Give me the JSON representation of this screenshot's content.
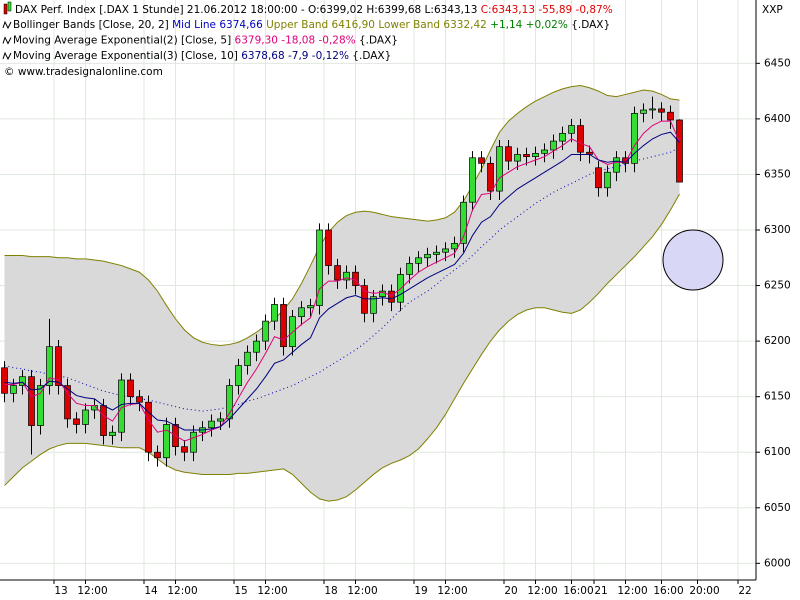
{
  "chart_data": {
    "type": "candlestick",
    "header": "DAX Perf. Index [.DAX  1 Stunde] 21.06.2012 18:00:00 - O:6399,02 H:6399,68 L:6343,13",
    "header_change": "C:6343,13 -55,89 -0,87%",
    "header_change_color": "#e00000",
    "copyright": "© www.tradesignalonline.com",
    "y_axis_title": "XXP",
    "up_color": "#33dd33",
    "down_color": "#dd0000",
    "band_fill": "#d9d9d9",
    "open": [
      6176,
      6153,
      6160,
      6168,
      6124,
      6160,
      6195,
      6160,
      6130,
      6125,
      6138,
      6142,
      6115,
      6118,
      6165,
      6150,
      6145,
      6100,
      6095,
      6125,
      6105,
      6100,
      6118,
      6122,
      6128,
      6130,
      6160,
      6178,
      6190,
      6200,
      6218,
      6233,
      6195,
      6222,
      6230,
      6232,
      6300,
      6268,
      6255,
      6262,
      6250,
      6225,
      6240,
      6245,
      6235,
      6260,
      6270,
      6275,
      6278,
      6280,
      6283,
      6288,
      6325,
      6365,
      6360,
      6335,
      6375,
      6362,
      6368,
      6366,
      6369,
      6372,
      6380,
      6387,
      6394,
      6370,
      6356,
      6338,
      6352,
      6365,
      6360,
      6405,
      6408,
      6409,
      6406,
      6399.02
    ],
    "high": [
      6182,
      6166,
      6174,
      6174,
      6166,
      6220,
      6201,
      6166,
      6136,
      6144,
      6148,
      6148,
      6124,
      6171,
      6171,
      6156,
      6151,
      6106,
      6131,
      6131,
      6111,
      6124,
      6128,
      6134,
      6136,
      6166,
      6184,
      6196,
      6206,
      6224,
      6239,
      6239,
      6228,
      6236,
      6238,
      6306,
      6306,
      6274,
      6268,
      6268,
      6256,
      6246,
      6251,
      6251,
      6266,
      6276,
      6281,
      6284,
      6286,
      6289,
      6294,
      6331,
      6371,
      6371,
      6366,
      6381,
      6381,
      6374,
      6374,
      6375,
      6378,
      6386,
      6393,
      6400,
      6400,
      6376,
      6362,
      6358,
      6371,
      6371,
      6411,
      6414,
      6420,
      6415,
      6412,
      6399.68
    ],
    "low": [
      6145,
      6145,
      6152,
      6098,
      6116,
      6152,
      6152,
      6122,
      6117,
      6117,
      6130,
      6107,
      6107,
      6110,
      6142,
      6137,
      6092,
      6087,
      6087,
      6097,
      6092,
      6092,
      6110,
      6114,
      6120,
      6122,
      6152,
      6170,
      6182,
      6192,
      6210,
      6187,
      6187,
      6214,
      6222,
      6224,
      6260,
      6247,
      6247,
      6242,
      6217,
      6217,
      6232,
      6227,
      6227,
      6252,
      6262,
      6267,
      6270,
      6272,
      6275,
      6280,
      6317,
      6352,
      6327,
      6327,
      6354,
      6354,
      6358,
      6358,
      6361,
      6364,
      6372,
      6379,
      6362,
      6360,
      6330,
      6330,
      6344,
      6352,
      6352,
      6397,
      6400,
      6398,
      6391,
      6343.13
    ],
    "close": [
      6153,
      6160,
      6168,
      6124,
      6160,
      6195,
      6160,
      6130,
      6125,
      6138,
      6142,
      6115,
      6118,
      6165,
      6150,
      6145,
      6100,
      6095,
      6125,
      6105,
      6100,
      6118,
      6122,
      6128,
      6130,
      6160,
      6178,
      6190,
      6200,
      6218,
      6233,
      6195,
      6222,
      6230,
      6232,
      6300,
      6268,
      6255,
      6262,
      6250,
      6225,
      6240,
      6245,
      6235,
      6260,
      6270,
      6275,
      6278,
      6280,
      6283,
      6288,
      6325,
      6365,
      6360,
      6335,
      6375,
      6362,
      6368,
      6366,
      6369,
      6372,
      6380,
      6387,
      6394,
      6370,
      6368,
      6338,
      6352,
      6365,
      6360,
      6405,
      6408,
      6409,
      6406,
      6399,
      6343.13
    ],
    "indicators": [
      {
        "name": "Bollinger Bands [Close, 20, 2]",
        "change": "+1,14 +0,02%",
        "change_color": "#008000",
        "tag": "{.DAX}",
        "series": [
          {
            "name": "Mid Line",
            "label": "6374,66",
            "color": "#0000c0",
            "dotted": true,
            "values": [
              6178,
              6176,
              6175,
              6173,
              6172,
              6170,
              6169,
              6167,
              6164,
              6161,
              6158,
              6155,
              6153,
              6151,
              6150,
              6148,
              6147,
              6145,
              6143,
              6141,
              6139,
              6138,
              6137,
              6138,
              6139,
              6141,
              6143,
              6146,
              6148,
              6151,
              6154,
              6157,
              6160,
              6164,
              6168,
              6172,
              6177,
              6182,
              6187,
              6192,
              6198,
              6205,
              6212,
              6220,
              6228,
              6235,
              6240,
              6245,
              6251,
              6258,
              6264,
              6270,
              6277,
              6285,
              6292,
              6300,
              6306,
              6312,
              6318,
              6324,
              6329,
              6334,
              6338,
              6342,
              6346,
              6350,
              6353,
              6355,
              6357,
              6359,
              6362,
              6364,
              6366,
              6368,
              6370,
              6374.66
            ]
          },
          {
            "name": "Upper Band",
            "label": "6416,90",
            "color": "#808000",
            "dotted": false,
            "values": [
              6277,
              6277,
              6277,
              6276,
              6276,
              6276,
              6275,
              6275,
              6274,
              6274,
              6273,
              6272,
              6270,
              6268,
              6265,
              6262,
              6255,
              6245,
              6232,
              6220,
              6210,
              6203,
              6199,
              6197,
              6196,
              6197,
              6199,
              6203,
              6208,
              6214,
              6220,
              6228,
              6238,
              6252,
              6268,
              6285,
              6298,
              6307,
              6313,
              6316,
              6317,
              6316,
              6314,
              6312,
              6311,
              6310,
              6309,
              6308,
              6309,
              6311,
              6316,
              6326,
              6340,
              6355,
              6372,
              6388,
              6398,
              6405,
              6411,
              6416,
              6420,
              6424,
              6427,
              6429,
              6430,
              6428,
              6425,
              6421,
              6420,
              6422,
              6424,
              6426,
              6425,
              6422,
              6418,
              6416.9
            ]
          },
          {
            "name": "Lower Band",
            "label": "6332,42",
            "color": "#808000",
            "dotted": false,
            "values": [
              6070,
              6078,
              6086,
              6092,
              6098,
              6103,
              6106,
              6108,
              6108,
              6108,
              6107,
              6106,
              6105,
              6104,
              6104,
              6104,
              6100,
              6094,
              6088,
              6084,
              6082,
              6081,
              6080,
              6080,
              6080,
              6080,
              6081,
              6081,
              6082,
              6083,
              6084,
              6085,
              6080,
              6072,
              6064,
              6058,
              6056,
              6057,
              6060,
              6066,
              6073,
              6080,
              6086,
              6090,
              6093,
              6097,
              6103,
              6112,
              6122,
              6134,
              6148,
              6162,
              6175,
              6188,
              6200,
              6210,
              6218,
              6224,
              6228,
              6230,
              6230,
              6228,
              6226,
              6225,
              6228,
              6235,
              6243,
              6252,
              6260,
              6268,
              6276,
              6285,
              6294,
              6305,
              6318,
              6332.42
            ]
          }
        ]
      },
      {
        "name": "Moving Average Exponential(2) [Close, 5]",
        "tag": "{.DAX}",
        "series": [
          {
            "label": "6379,30 -18,08 -0,28%",
            "color": "#e0007a",
            "dotted": false,
            "values": [
              6161,
              6161,
              6163,
              6150,
              6153,
              6167,
              6165,
              6153,
              6144,
              6142,
              6142,
              6133,
              6128,
              6140,
              6143,
              6144,
              6129,
              6118,
              6120,
              6115,
              6110,
              6113,
              6116,
              6120,
              6123,
              6135,
              6149,
              6163,
              6175,
              6189,
              6204,
              6201,
              6208,
              6215,
              6221,
              6247,
              6254,
              6254,
              6257,
              6255,
              6245,
              6243,
              6244,
              6241,
              6247,
              6255,
              6262,
              6267,
              6271,
              6275,
              6279,
              6294,
              6318,
              6332,
              6333,
              6347,
              6352,
              6357,
              6360,
              6363,
              6366,
              6371,
              6376,
              6382,
              6378,
              6375,
              6363,
              6359,
              6361,
              6361,
              6376,
              6387,
              6394,
              6398,
              6398,
              6379.3
            ]
          }
        ]
      },
      {
        "name": "Moving Average Exponential(3) [Close, 10]",
        "tag": "{.DAX}",
        "series": [
          {
            "label": "6378,68 -7,9 -0,12%",
            "color": "#000080",
            "dotted": false,
            "values": [
              6163,
              6162,
              6163,
              6156,
              6157,
              6164,
              6163,
              6157,
              6151,
              6149,
              6148,
              6142,
              6138,
              6143,
              6144,
              6144,
              6136,
              6129,
              6128,
              6124,
              6120,
              6120,
              6120,
              6121,
              6123,
              6130,
              6139,
              6148,
              6157,
              6168,
              6180,
              6183,
              6190,
              6197,
              6203,
              6221,
              6229,
              6234,
              6239,
              6241,
              6238,
              6238,
              6239,
              6238,
              6242,
              6247,
              6252,
              6257,
              6261,
              6265,
              6269,
              6279,
              6295,
              6307,
              6312,
              6323,
              6330,
              6337,
              6342,
              6347,
              6352,
              6357,
              6362,
              6368,
              6368,
              6368,
              6363,
              6361,
              6362,
              6361,
              6369,
              6376,
              6382,
              6386,
              6388,
              6378.68
            ]
          }
        ]
      }
    ],
    "xlim": [
      -0.5,
      83.5
    ],
    "xticks": [
      {
        "value": 5.5,
        "label": "13"
      },
      {
        "value": 9,
        "label": "12:00"
      },
      {
        "value": 15.5,
        "label": "14"
      },
      {
        "value": 19,
        "label": "12:00"
      },
      {
        "value": 25.5,
        "label": "15"
      },
      {
        "value": 29,
        "label": "12:00"
      },
      {
        "value": 35.5,
        "label": "18"
      },
      {
        "value": 39,
        "label": "12:00"
      },
      {
        "value": 45.5,
        "label": "19"
      },
      {
        "value": 49,
        "label": "12:00"
      },
      {
        "value": 55.5,
        "label": "20"
      },
      {
        "value": 59,
        "label": "12:00"
      },
      {
        "value": 63,
        "label": "16:00"
      },
      {
        "value": 65.5,
        "label": "21"
      },
      {
        "value": 69,
        "label": "12:00"
      },
      {
        "value": 73,
        "label": "16:00"
      },
      {
        "value": 77,
        "label": "20:00"
      },
      {
        "value": 81.5,
        "label": "22"
      }
    ],
    "ylim": [
      5985,
      6507
    ],
    "yticks": [
      6000,
      6050,
      6100,
      6150,
      6200,
      6250,
      6300,
      6350,
      6400,
      6450
    ],
    "grid": true
  }
}
